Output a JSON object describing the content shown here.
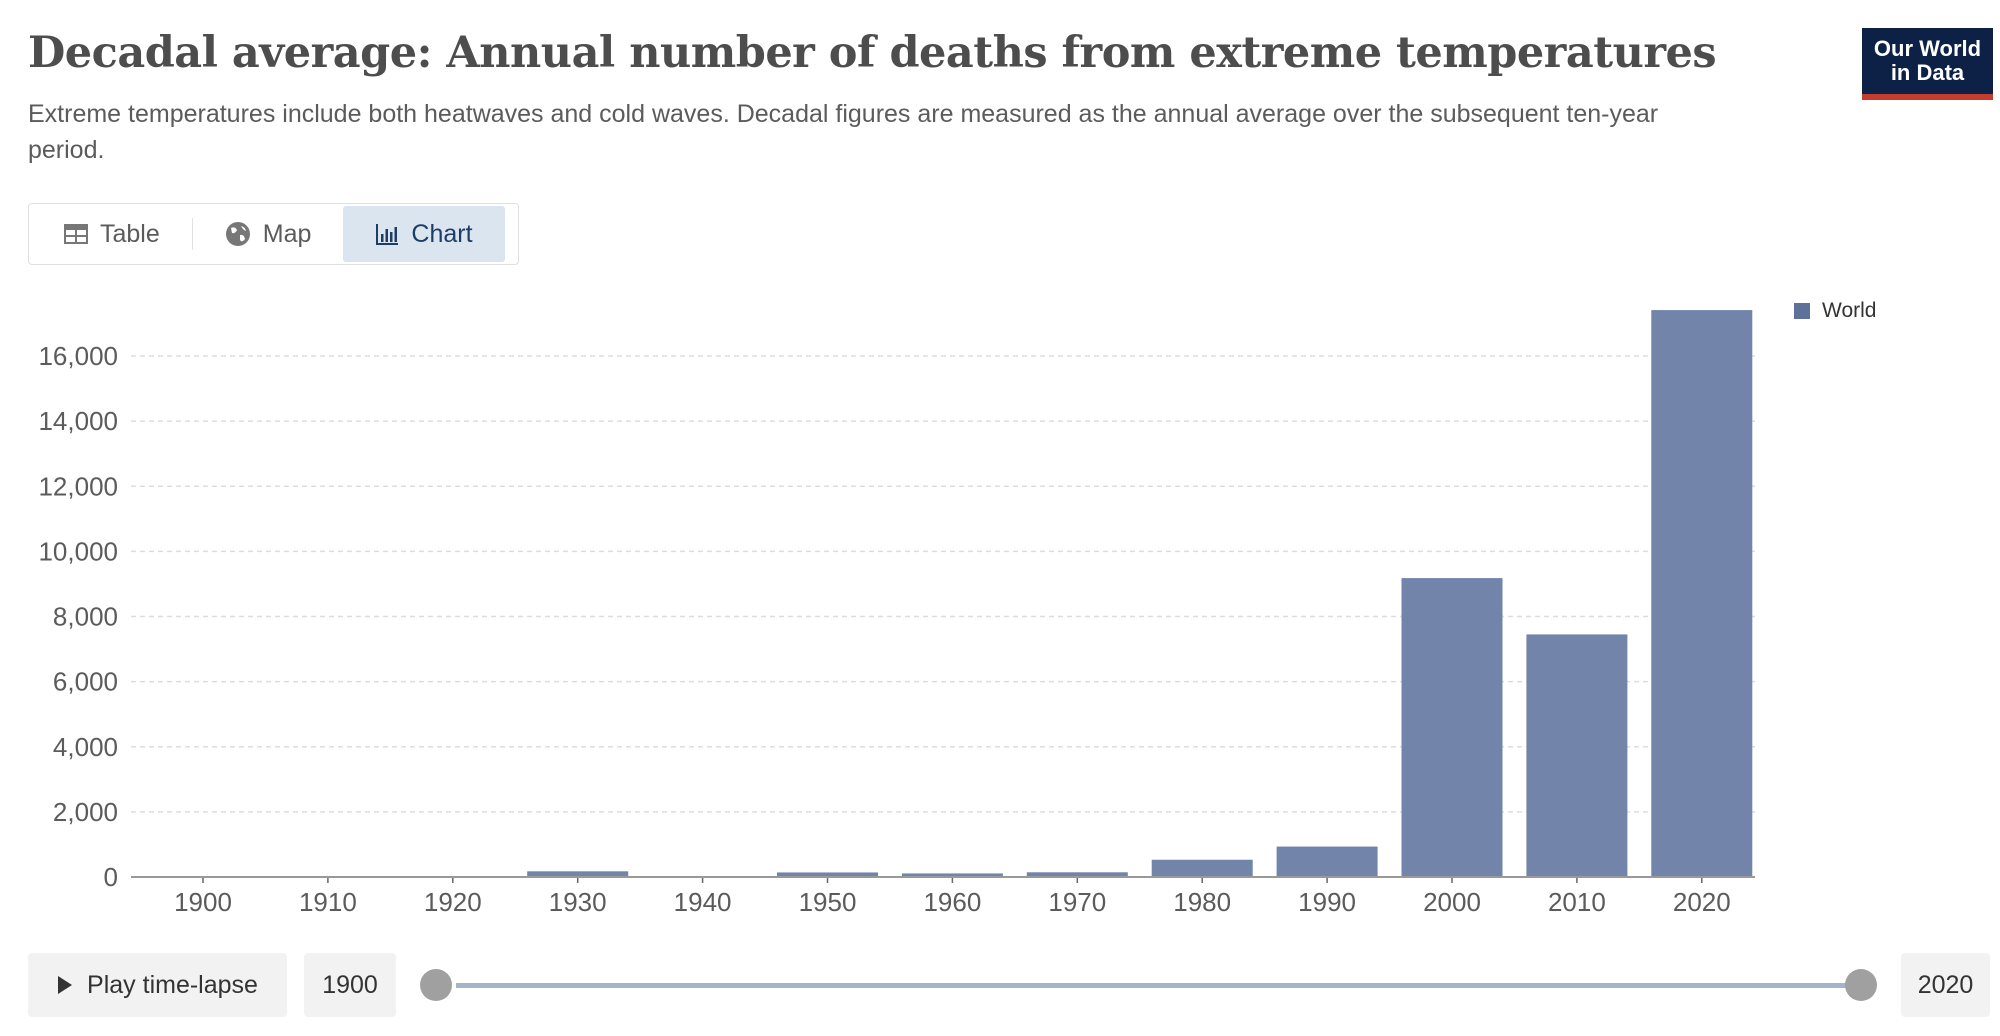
{
  "header": {
    "title": "Decadal average: Annual number of deaths from extreme temperatures",
    "subtitle": "Extreme temperatures include both heatwaves and cold waves. Decadal figures are measured as the annual average over the subsequent ten-year period.",
    "logo_line1": "Our World",
    "logo_line2": "in Data"
  },
  "tabs": [
    {
      "label": "Table",
      "icon": "table-icon"
    },
    {
      "label": "Map",
      "icon": "globe-icon"
    },
    {
      "label": "Chart",
      "icon": "bar-chart-icon",
      "active": true
    }
  ],
  "timeline": {
    "play_label": "Play time-lapse",
    "start": "1900",
    "end": "2020"
  },
  "colors": {
    "bar": "#7384ab",
    "legend": "#5e7199"
  },
  "chart_data": {
    "type": "bar",
    "title": "Decadal average: Annual number of deaths from extreme temperatures",
    "xlabel": "",
    "ylabel": "",
    "categories": [
      "1900",
      "1910",
      "1920",
      "1930",
      "1940",
      "1950",
      "1960",
      "1970",
      "1980",
      "1990",
      "2000",
      "2010",
      "2020"
    ],
    "series": [
      {
        "name": "World",
        "values": [
          0,
          0,
          0,
          175,
          0,
          140,
          110,
          145,
          530,
          935,
          9180,
          7450,
          17410
        ]
      }
    ],
    "ylim": [
      0,
      17500
    ],
    "yticks": [
      0,
      2000,
      4000,
      6000,
      8000,
      10000,
      12000,
      14000,
      16000
    ],
    "ytick_labels": [
      "0",
      "2,000",
      "4,000",
      "6,000",
      "8,000",
      "10,000",
      "12,000",
      "14,000",
      "16,000"
    ],
    "grid": true,
    "legend": "top-right"
  }
}
